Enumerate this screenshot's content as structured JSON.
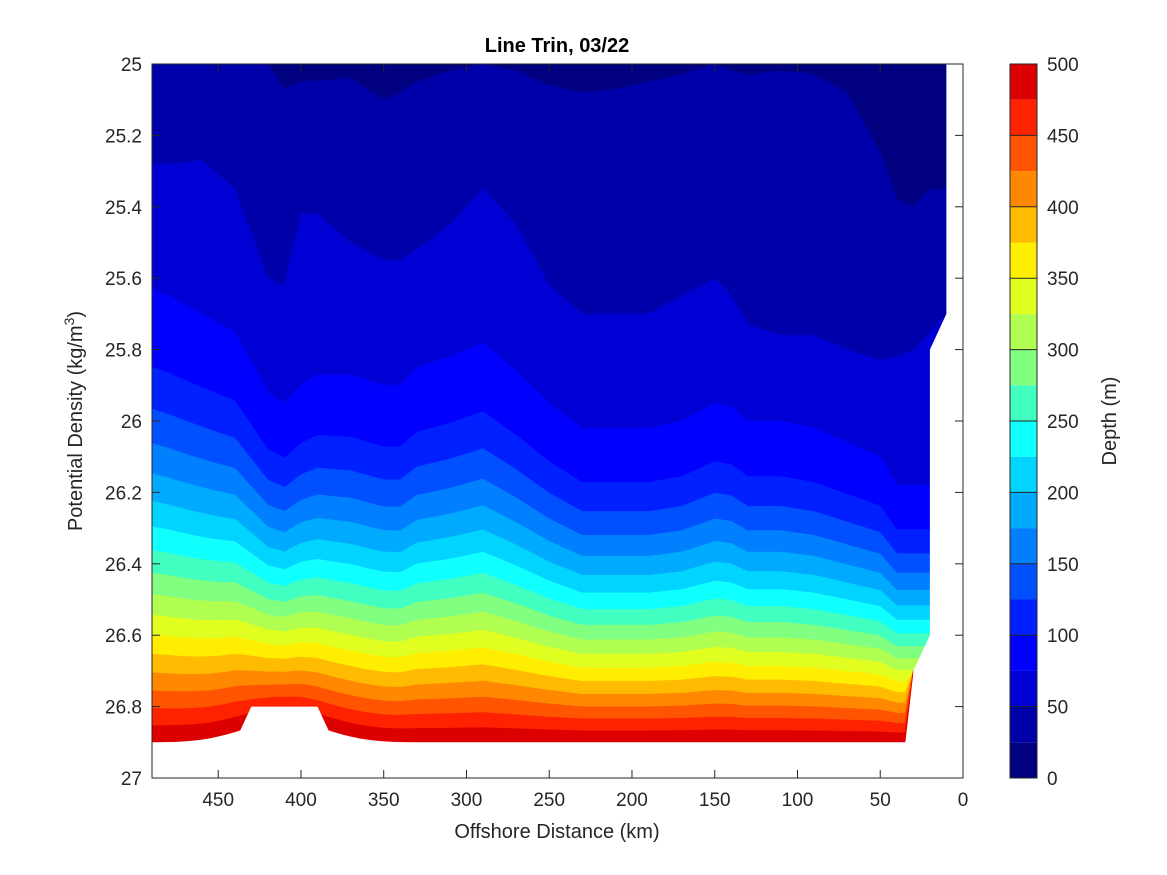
{
  "chart_data": {
    "type": "contourf",
    "title": "Line Trin, 03/22",
    "xlabel": "Offshore Distance (km)",
    "ylabel_main": "Potential Density (kg/m",
    "ylabel_exp": "3",
    "ylabel_close": ")",
    "xlim": [
      490,
      0
    ],
    "ylim": [
      25,
      27
    ],
    "y_reversed": true,
    "x_reversed": true,
    "xticks": [
      450,
      400,
      350,
      300,
      250,
      200,
      150,
      100,
      50,
      0
    ],
    "yticks": [
      25,
      25.2,
      25.4,
      25.6,
      25.8,
      26,
      26.2,
      26.4,
      26.6,
      26.8,
      27
    ],
    "ytick_labels": [
      "25",
      "25.2",
      "25.4",
      "25.6",
      "25.8",
      "26",
      "26.2",
      "26.4",
      "26.6",
      "26.8",
      "27"
    ],
    "colorbar": {
      "label": "Depth (m)",
      "lim": [
        0,
        500
      ],
      "ticks": [
        0,
        50,
        100,
        150,
        200,
        250,
        300,
        350,
        400,
        450,
        500
      ],
      "colormap": "jet",
      "levels": [
        0,
        25,
        50,
        75,
        100,
        125,
        150,
        175,
        200,
        225,
        250,
        275,
        300,
        325,
        350,
        375,
        400,
        425,
        450,
        475,
        500
      ],
      "level_colors": [
        "#000080",
        "#0000aa",
        "#0000d4",
        "#0000ff",
        "#0020ff",
        "#0050ff",
        "#0080ff",
        "#00aaff",
        "#00d4ff",
        "#10ffff",
        "#40ffc0",
        "#80ff80",
        "#b0ff50",
        "#e0ff20",
        "#ffee00",
        "#ffbb00",
        "#ff8800",
        "#ff5500",
        "#ff2200",
        "#dd0000",
        "#aa0000"
      ]
    },
    "x_stations": [
      490,
      480,
      460,
      440,
      420,
      410,
      400,
      390,
      370,
      350,
      340,
      330,
      310,
      290,
      270,
      250,
      230,
      210,
      190,
      170,
      150,
      140,
      130,
      110,
      90,
      70,
      50,
      40,
      30,
      20,
      10
    ],
    "isopycnal_depth_contours": [
      {
        "depth": 25,
        "x": [
          420,
          410,
          400,
          370,
          350,
          340,
          330,
          310,
          290,
          270,
          250,
          230,
          210,
          190,
          170,
          150,
          140,
          130,
          110,
          90,
          70,
          50,
          40,
          30,
          20
        ],
        "sigma": [
          25.0,
          25.07,
          25.05,
          25.04,
          25.1,
          25.08,
          25.05,
          25.02,
          25.0,
          25.02,
          25.06,
          25.08,
          25.07,
          25.05,
          25.03,
          25.0,
          25.02,
          25.03,
          25.02,
          25.03,
          25.08,
          25.25,
          25.38,
          25.4,
          25.35
        ]
      },
      {
        "depth": 50,
        "x": [
          490,
          480,
          460,
          440,
          420,
          410,
          400,
          390,
          370,
          350,
          340,
          330,
          310,
          290,
          270,
          250,
          230,
          210,
          190,
          170,
          150,
          140,
          130,
          110,
          90,
          70,
          50,
          40,
          30,
          20,
          10
        ],
        "sigma": [
          25.28,
          25.28,
          25.27,
          25.35,
          25.6,
          25.62,
          25.42,
          25.42,
          25.5,
          25.55,
          25.55,
          25.52,
          25.45,
          25.35,
          25.45,
          25.62,
          25.7,
          25.7,
          25.7,
          25.65,
          25.6,
          25.65,
          25.73,
          25.76,
          25.76,
          25.8,
          25.83,
          25.82,
          25.8,
          25.75,
          25.7
        ]
      },
      {
        "depth": 75,
        "x": [
          490,
          480,
          460,
          440,
          420,
          410,
          400,
          390,
          370,
          350,
          340,
          330,
          310,
          290,
          270,
          250,
          230,
          210,
          190,
          170,
          150,
          140,
          130,
          110,
          90,
          70,
          50,
          40,
          30
        ],
        "sigma": [
          25.63,
          25.65,
          25.7,
          25.75,
          25.92,
          25.95,
          25.9,
          25.87,
          25.87,
          25.9,
          25.9,
          25.85,
          25.82,
          25.78,
          25.86,
          25.95,
          26.02,
          26.02,
          26.02,
          26.0,
          25.95,
          25.96,
          26.0,
          26.0,
          26.02,
          26.06,
          26.1,
          26.18,
          26.18
        ]
      }
    ]
  }
}
